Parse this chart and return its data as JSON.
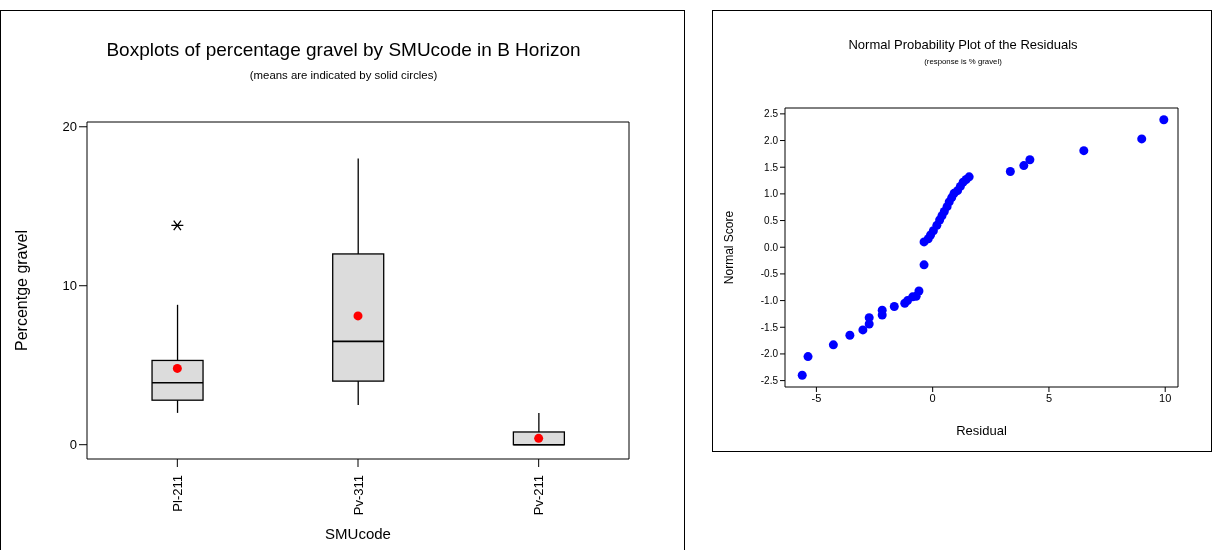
{
  "chart_data": [
    {
      "type": "box",
      "title": "Boxplots of percentage gravel by SMUcode in B Horizon",
      "subtitle": "(means are indicated by solid circles)",
      "xlabel": "SMUcode",
      "ylabel": "Percentge gravel",
      "categories": [
        "Pl-211",
        "Pv-311",
        "Pv-211"
      ],
      "color": "#dcdcdc",
      "boxes": [
        {
          "low": 2.0,
          "q1": 2.8,
          "median": 3.9,
          "q3": 5.3,
          "high": 8.8,
          "outliers": [
            13.8
          ]
        },
        {
          "low": 2.5,
          "q1": 4.0,
          "median": 6.5,
          "q3": 12.0,
          "high": 18.0
        },
        {
          "low": 0,
          "q1": 0,
          "median": 0,
          "q3": 0.8,
          "high": 2.0
        }
      ],
      "series": [
        {
          "type": "scatter",
          "color": "#ff0000",
          "marker": "circle",
          "x": [
            "Pl-211",
            "Pv-311",
            "Pv-211"
          ],
          "values": [
            4.8,
            8.1,
            0.4
          ]
        }
      ],
      "ylim": [
        -0.9,
        20.3
      ],
      "yticks": [
        0,
        10,
        20
      ]
    },
    {
      "type": "scatter",
      "title": "Normal Probability Plot of the Residuals",
      "subtitle": "(response is % gravel)",
      "xlabel": "Residual",
      "ylabel": "Normal Score",
      "color": "#0000ff",
      "marker": "circle",
      "x": [
        -5.61,
        -5.36,
        -4.27,
        -3.56,
        -3.0,
        -2.73,
        -2.73,
        -2.17,
        -2.17,
        -1.65,
        -1.2,
        -1.08,
        -0.86,
        -0.71,
        -0.59,
        -0.37,
        -0.37,
        -0.19,
        -0.09,
        0.03,
        0.18,
        0.3,
        0.4,
        0.5,
        0.62,
        0.71,
        0.82,
        0.92,
        1.07,
        1.19,
        1.31,
        1.44,
        1.57,
        3.34,
        3.92,
        4.18,
        6.5,
        8.99,
        9.94
      ],
      "values": [
        -2.4,
        -2.05,
        -1.83,
        -1.65,
        -1.55,
        -1.32,
        -1.44,
        -1.18,
        -1.27,
        -1.11,
        -1.05,
        -1.0,
        -0.93,
        -0.92,
        -0.82,
        -0.33,
        0.1,
        0.16,
        0.23,
        0.31,
        0.41,
        0.51,
        0.59,
        0.67,
        0.76,
        0.85,
        0.93,
        1.01,
        1.06,
        1.14,
        1.22,
        1.27,
        1.32,
        1.42,
        1.53,
        1.64,
        1.81,
        2.03,
        2.39
      ],
      "xlim": [
        -6.35,
        10.55
      ],
      "ylim": [
        -2.62,
        2.61
      ],
      "xticks": [
        -5,
        0,
        5,
        10
      ],
      "yticks": [
        {
          "value": -2.5,
          "label": "-2.5"
        },
        {
          "value": -2.0,
          "label": "-2.0"
        },
        {
          "value": -1.5,
          "label": "-1.5"
        },
        {
          "value": -1.0,
          "label": "-1.0"
        },
        {
          "value": -0.5,
          "label": "-0.5"
        },
        {
          "value": 0,
          "label": "0.0"
        },
        {
          "value": 0.5,
          "label": "0.5"
        },
        {
          "value": 1.0,
          "label": "1.0"
        },
        {
          "value": 1.5,
          "label": "1.5"
        },
        {
          "value": 2.0,
          "label": "2.0"
        },
        {
          "value": 2.5,
          "label": "2.5"
        }
      ]
    }
  ]
}
